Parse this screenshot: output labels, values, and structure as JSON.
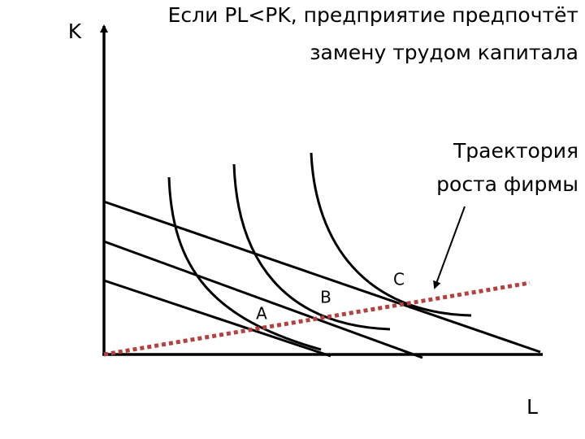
{
  "axes": {
    "y_label": "K",
    "x_label": "L"
  },
  "title": {
    "lines": [
      "Если PL<PK, предприятие предпочтёт",
      "замену трудом капитала"
    ]
  },
  "annotation": {
    "lines": [
      "Траектория",
      "роста фирмы"
    ]
  },
  "points": [
    "A",
    "B",
    "C"
  ]
}
